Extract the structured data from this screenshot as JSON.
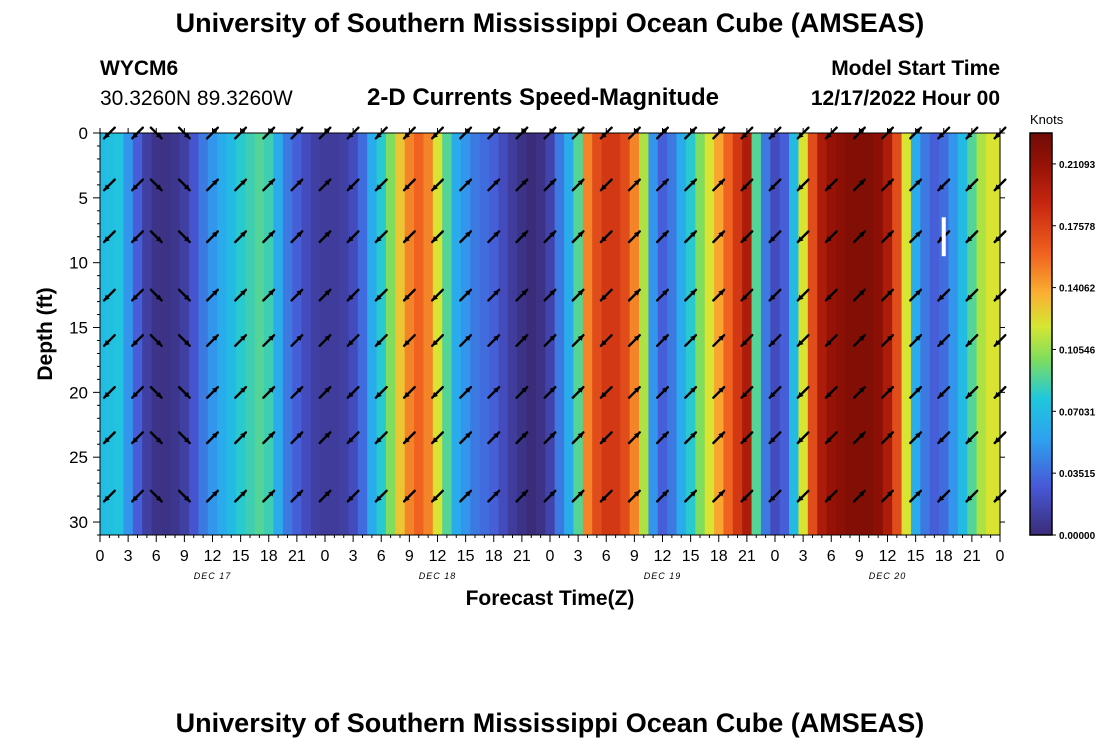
{
  "header": {
    "title": "University of Southern Mississippi Ocean Cube (AMSEAS)",
    "station_id": "WYCM6",
    "coordinates": "30.3260N  89.3260W",
    "chart_title": "2-D Currents Speed-Magnitude",
    "model_start_label": "Model Start Time",
    "model_start_value": "12/17/2022 Hour 00"
  },
  "footer": {
    "title": "University of Southern Mississippi Ocean Cube (AMSEAS)"
  },
  "chart_data": {
    "type": "heatmap",
    "title": "2-D Currents Speed-Magnitude",
    "xlabel": "Forecast Time(Z)",
    "ylabel": "Depth (ft)",
    "x_unit": "hours from model start",
    "xlim": [
      0,
      96
    ],
    "ylim": [
      31,
      0
    ],
    "x_ticks": [
      0,
      3,
      6,
      9,
      12,
      15,
      18,
      21,
      24,
      27,
      30,
      33,
      36,
      39,
      42,
      45,
      48,
      51,
      54,
      57,
      60,
      63,
      66,
      69,
      72,
      75,
      78,
      81,
      84,
      87,
      90,
      93,
      96
    ],
    "x_tick_labels": [
      "0",
      "3",
      "6",
      "9",
      "12",
      "15",
      "18",
      "21",
      "0",
      "3",
      "6",
      "9",
      "12",
      "15",
      "18",
      "21",
      "0",
      "3",
      "6",
      "9",
      "12",
      "15",
      "18",
      "21",
      "0",
      "3",
      "6",
      "9",
      "12",
      "15",
      "18",
      "21",
      "0"
    ],
    "y_ticks": [
      0,
      5,
      10,
      15,
      20,
      25,
      30
    ],
    "y_tick_labels": [
      "0",
      "5",
      "10",
      "15",
      "20",
      "25",
      "30"
    ],
    "date_labels": [
      {
        "hour": 12,
        "text": "DEC 17"
      },
      {
        "hour": 36,
        "text": "DEC 18"
      },
      {
        "hour": 60,
        "text": "DEC 19"
      },
      {
        "hour": 84,
        "text": "DEC 20"
      }
    ],
    "colorbar": {
      "label": "Knots",
      "min": 0,
      "max": 0.2285,
      "ticks": [
        0.21093,
        0.17578,
        0.14062,
        0.10546,
        0.07031,
        0.03515,
        0.0
      ],
      "tick_labels": [
        "0.21093",
        "0.17578",
        "0.14062",
        "0.10546",
        "0.07031",
        "0.03515",
        "0.00000"
      ]
    },
    "speed_by_hour_knots": {
      "hours": [
        0,
        1,
        2,
        3,
        4,
        5,
        6,
        7,
        8,
        9,
        10,
        11,
        12,
        13,
        14,
        15,
        16,
        17,
        18,
        19,
        20,
        21,
        22,
        23,
        24,
        25,
        26,
        27,
        28,
        29,
        30,
        31,
        32,
        33,
        34,
        35,
        36,
        37,
        38,
        39,
        40,
        41,
        42,
        43,
        44,
        45,
        46,
        47,
        48,
        49,
        50,
        51,
        52,
        53,
        54,
        55,
        56,
        57,
        58,
        59,
        60,
        61,
        62,
        63,
        64,
        65,
        66,
        67,
        68,
        69,
        70,
        71,
        72,
        73,
        74,
        75,
        76,
        77,
        78,
        79,
        80,
        81,
        82,
        83,
        84,
        85,
        86,
        87,
        88,
        89,
        90,
        91,
        92,
        93,
        94,
        95,
        96
      ],
      "values": [
        0.07,
        0.072,
        0.075,
        0.05,
        0.03,
        0.012,
        0.005,
        0.004,
        0.006,
        0.012,
        0.025,
        0.04,
        0.05,
        0.06,
        0.07,
        0.08,
        0.085,
        0.09,
        0.085,
        0.06,
        0.04,
        0.03,
        0.02,
        0.012,
        0.01,
        0.01,
        0.012,
        0.02,
        0.035,
        0.06,
        0.08,
        0.1,
        0.13,
        0.15,
        0.16,
        0.15,
        0.12,
        0.09,
        0.06,
        0.05,
        0.04,
        0.035,
        0.03,
        0.02,
        0.01,
        0.004,
        0.0,
        0.004,
        0.015,
        0.04,
        0.06,
        0.09,
        0.15,
        0.17,
        0.18,
        0.18,
        0.17,
        0.15,
        0.11,
        0.05,
        0.03,
        0.04,
        0.06,
        0.08,
        0.1,
        0.12,
        0.14,
        0.16,
        0.18,
        0.2,
        0.09,
        0.04,
        0.02,
        0.03,
        0.07,
        0.12,
        0.17,
        0.2,
        0.21,
        0.215,
        0.22,
        0.22,
        0.22,
        0.215,
        0.2,
        0.17,
        0.12,
        0.06,
        0.04,
        0.03,
        0.035,
        0.05,
        0.07,
        0.09,
        0.11,
        0.12,
        0.12
      ]
    },
    "arrow_depths_ft": [
      0,
      4,
      8,
      12.5,
      16,
      20,
      23.5,
      28
    ],
    "arrow_hours": [
      1,
      4,
      6,
      9,
      12,
      15,
      18,
      21,
      24,
      27,
      30,
      33,
      36,
      39,
      42,
      45,
      48,
      51,
      54,
      57,
      60,
      63,
      66,
      69,
      72,
      75,
      78,
      81,
      84,
      87,
      90,
      93,
      96
    ],
    "arrow_direction_deg": [
      225,
      225,
      135,
      135,
      45,
      45,
      45,
      45,
      45,
      225,
      225,
      225,
      225,
      45,
      45,
      45,
      45,
      45,
      225,
      45,
      45,
      45,
      45,
      225,
      225,
      225,
      225,
      45,
      45,
      45,
      225,
      225,
      225
    ]
  }
}
